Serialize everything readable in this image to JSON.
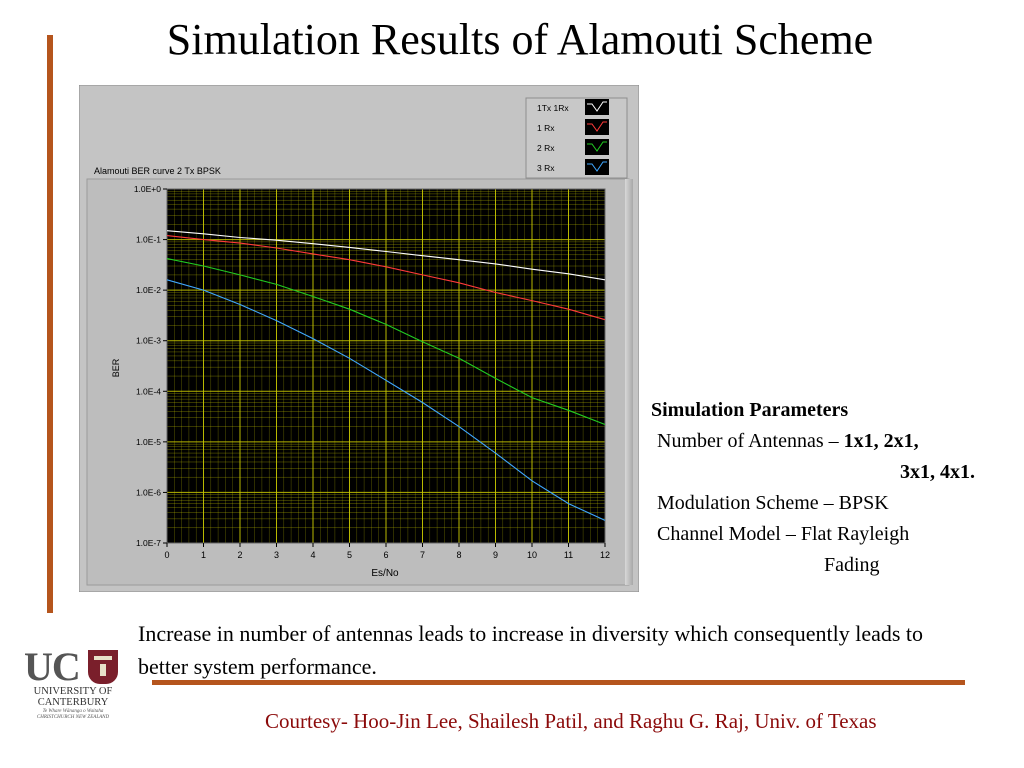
{
  "slide": {
    "title": "Simulation Results of Alamouti Scheme",
    "params": {
      "heading": "Simulation Parameters",
      "antennas_label": "Number of Antennas – ",
      "antennas_value_1": "1x1, 2x1,",
      "antennas_value_2": "3x1, 4x1.",
      "modulation": "Modulation Scheme – BPSK",
      "channel_1": "Channel Model – Flat Rayleigh",
      "channel_2": "Fading"
    },
    "note": "Increase in number of antennas leads to increase in diversity which consequently leads to better system performance.",
    "courtesy": "Courtesy- Hoo-Jin Lee, Shailesh Patil, and Raghu G. Raj, Univ. of Texas",
    "logo": {
      "initials": "UC",
      "line1": "UNIVERSITY OF",
      "line2": "CANTERBURY",
      "line3": "Te Whare Wānanga o Waitaha CHRISTCHURCH NEW ZEALAND"
    }
  },
  "chart_data": {
    "type": "line",
    "title": "Alamouti BER curve 2 Tx BPSK",
    "xlabel": "Es/No",
    "ylabel": "BER",
    "xlim": [
      0,
      12
    ],
    "ylim": [
      1e-07,
      1
    ],
    "log_y": true,
    "x": [
      0,
      1,
      2,
      3,
      4,
      5,
      6,
      7,
      8,
      9,
      10,
      11,
      12
    ],
    "xticks": [
      "0",
      "1",
      "2",
      "3",
      "4",
      "5",
      "6",
      "7",
      "8",
      "9",
      "10",
      "11",
      "12"
    ],
    "yticks": [
      {
        "value": 1,
        "label": "1.0E+0"
      },
      {
        "value": 0.1,
        "label": "1.0E-1"
      },
      {
        "value": 0.01,
        "label": "1.0E-2"
      },
      {
        "value": 0.001,
        "label": "1.0E-3"
      },
      {
        "value": 0.0001,
        "label": "1.0E-4"
      },
      {
        "value": 1e-05,
        "label": "1.0E-5"
      },
      {
        "value": 1e-06,
        "label": "1.0E-6"
      },
      {
        "value": 1e-07,
        "label": "1.0E-7"
      }
    ],
    "grid": true,
    "legend_position": "top-right",
    "plot_background": "#000000",
    "grid_color": "#c8c800",
    "series": [
      {
        "name": "1Tx 1Rx",
        "color": "#ffffff",
        "values": [
          0.15,
          0.13,
          0.11,
          0.097,
          0.083,
          0.07,
          0.058,
          0.048,
          0.04,
          0.033,
          0.026,
          0.021,
          0.016
        ]
      },
      {
        "name": "1 Rx",
        "color": "#ff3a3a",
        "values": [
          0.12,
          0.1,
          0.085,
          0.068,
          0.052,
          0.04,
          0.029,
          0.02,
          0.014,
          0.009,
          0.0062,
          0.0042,
          0.0026
        ]
      },
      {
        "name": "2 Rx",
        "color": "#22cc22",
        "values": [
          0.042,
          0.03,
          0.02,
          0.013,
          0.0075,
          0.0042,
          0.0021,
          0.00095,
          0.00045,
          0.00018,
          7.5e-05,
          4.2e-05,
          2.2e-05
        ]
      },
      {
        "name": "3 Rx",
        "color": "#40a8ff",
        "values": [
          0.016,
          0.01,
          0.0052,
          0.0025,
          0.0011,
          0.00045,
          0.000165,
          6e-05,
          2e-05,
          6e-06,
          1.7e-06,
          6e-07,
          2.8e-07
        ]
      }
    ]
  }
}
